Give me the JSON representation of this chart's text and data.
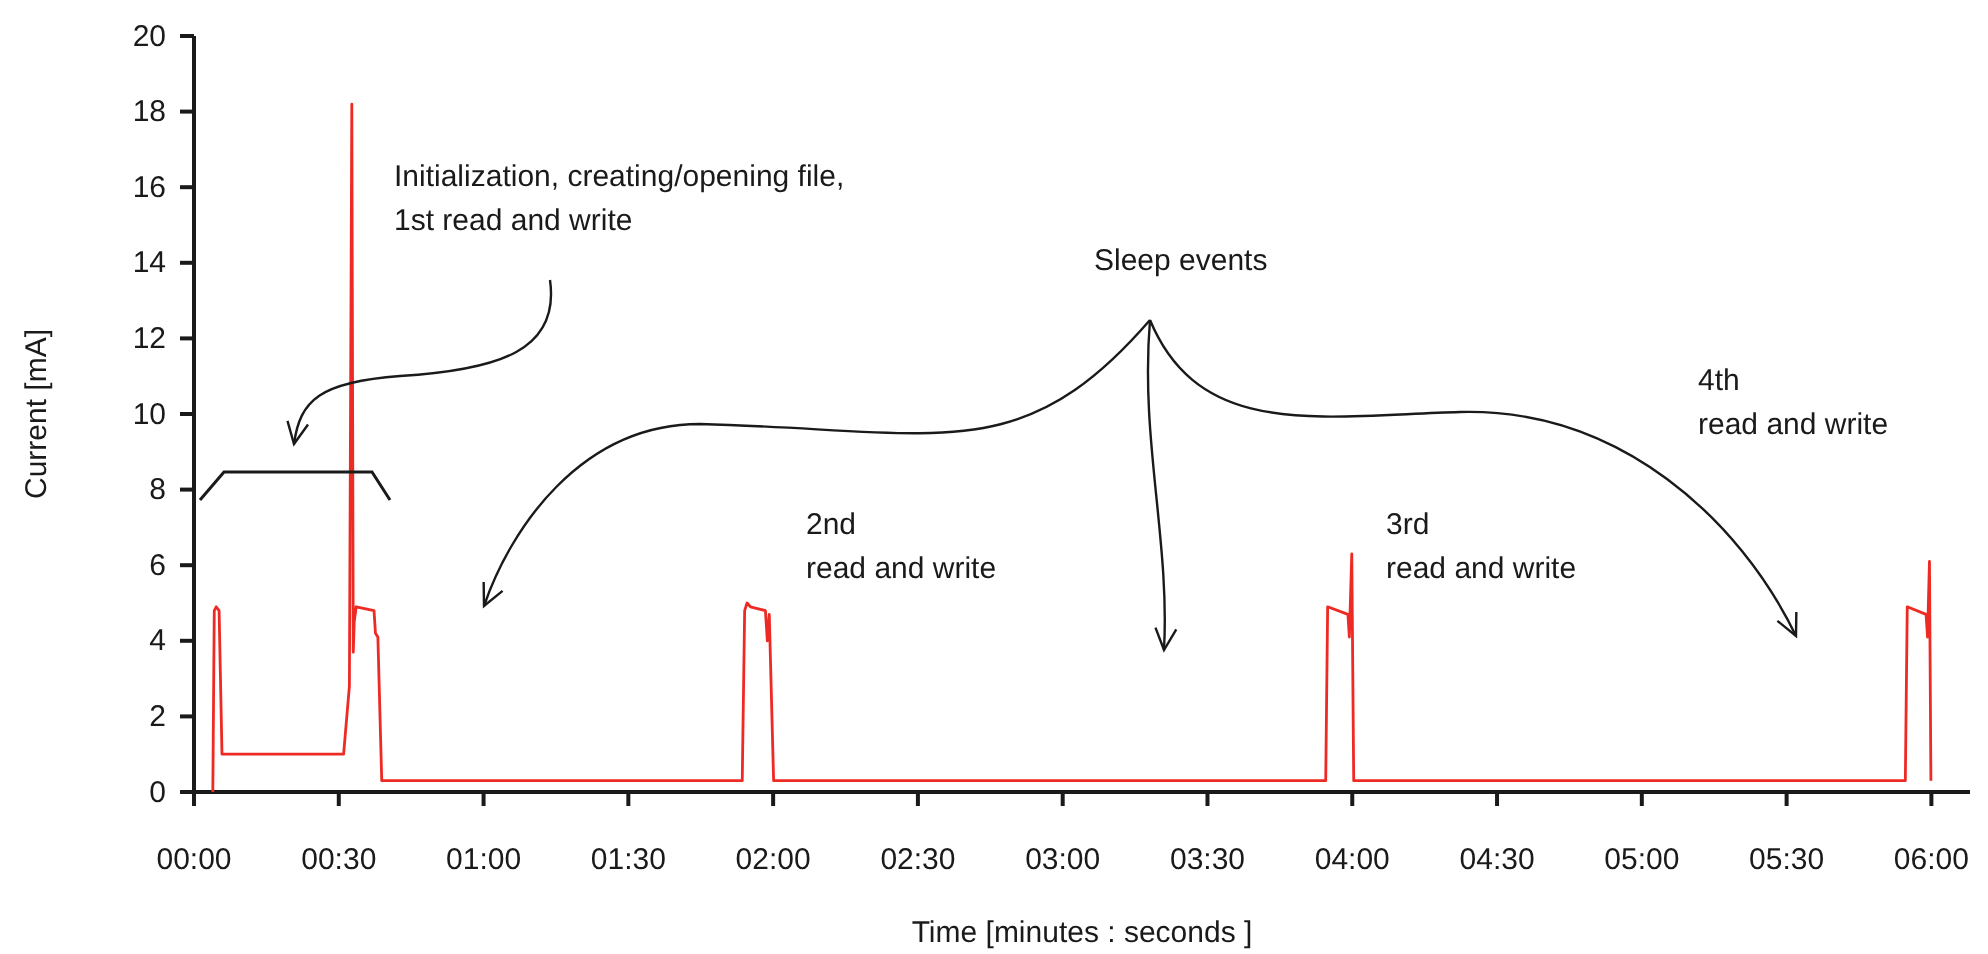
{
  "chart_data": {
    "type": "line",
    "xlabel": "Time [minutes : seconds ]",
    "ylabel": "Current [mA]",
    "annotations": [
      "Initialization, creating/opening file,\n1st read and write",
      "Sleep events",
      "2nd\nread and write",
      "3rd\nread and write",
      "4th\nread and write"
    ],
    "xlim": [
      0,
      368
    ],
    "ylim": [
      0,
      20
    ],
    "xticks": [
      {
        "value": 0,
        "label": "00:00"
      },
      {
        "value": 30,
        "label": "00:30"
      },
      {
        "value": 60,
        "label": "01:00"
      },
      {
        "value": 90,
        "label": "01:30"
      },
      {
        "value": 120,
        "label": "02:00"
      },
      {
        "value": 150,
        "label": "02:30"
      },
      {
        "value": 180,
        "label": "03:00"
      },
      {
        "value": 210,
        "label": "03:30"
      },
      {
        "value": 240,
        "label": "04:00"
      },
      {
        "value": 270,
        "label": "04:30"
      },
      {
        "value": 300,
        "label": "05:00"
      },
      {
        "value": 330,
        "label": "05:30"
      },
      {
        "value": 360,
        "label": "06:00"
      }
    ],
    "yticks": [
      0,
      2,
      4,
      6,
      8,
      10,
      12,
      14,
      16,
      18,
      20
    ],
    "grid": false,
    "marker": "none",
    "line_style": "solid",
    "series": [
      {
        "color": "#ee2a24",
        "x": [
          3.9,
          4.2,
          4.6,
          5.2,
          5.8,
          31.0,
          32.2,
          32.7,
          33.0,
          33.2,
          33.6,
          37.3,
          37.6,
          38.1,
          38.9,
          113.6,
          114.1,
          114.6,
          115.3,
          118.4,
          118.8,
          119.2,
          120.1,
          234.5,
          234.9,
          239.1,
          239.4,
          239.9,
          240.3,
          354.6,
          355.0,
          358.9,
          359.2,
          359.6,
          359.9
        ],
        "values": [
          0,
          4.8,
          4.9,
          4.8,
          1.0,
          1.0,
          2.8,
          18.2,
          3.7,
          4.5,
          4.9,
          4.8,
          4.2,
          4.1,
          0.3,
          0.3,
          4.8,
          5.0,
          4.9,
          4.8,
          4.0,
          4.7,
          0.3,
          0.3,
          4.9,
          4.7,
          4.1,
          6.3,
          0.3,
          0.3,
          4.9,
          4.7,
          4.1,
          6.1,
          0.3
        ]
      }
    ]
  }
}
